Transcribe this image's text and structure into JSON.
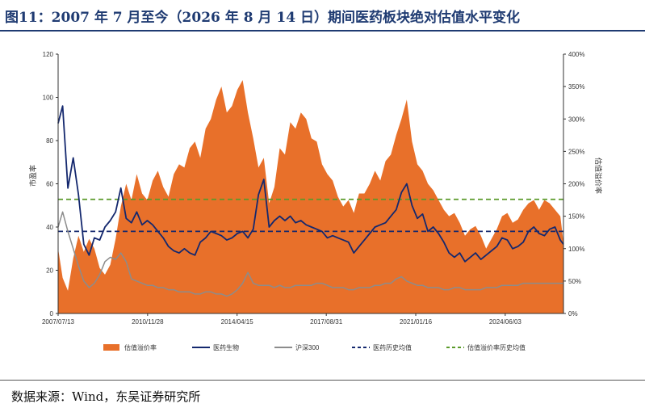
{
  "title": "图11：2007 年 7 月至今（2026 年 8 月 14 日）期间医药板块绝对估值水平变化",
  "source": "数据来源：Wind，东吴证券研究所",
  "colors": {
    "title": "#1f3b72",
    "premium": "#e8702a",
    "pharma": "#14286e",
    "hs300": "#8c8c8c",
    "pharma_mean": "#14286e",
    "premium_mean": "#5a9a2a"
  },
  "chart_data": {
    "type": "area",
    "title": "",
    "y_left": {
      "label": "市盈率",
      "range": [
        0,
        120
      ],
      "ticks": [
        "0",
        "20",
        "40",
        "60",
        "80",
        "100",
        "120"
      ]
    },
    "y_right": {
      "label": "估值溢价率",
      "range": [
        0,
        400
      ],
      "ticks": [
        "0%",
        "50%",
        "100%",
        "150%",
        "200%",
        "250%",
        "300%",
        "350%",
        "400%"
      ]
    },
    "x_ticks": [
      "2007/07/13",
      "2010/11/28",
      "2014/04/15",
      "2017/08/31",
      "2021/01/16",
      "2024/06/03"
    ],
    "x_tick_years": [
      2007.53,
      2010.91,
      2014.29,
      2017.66,
      2021.04,
      2024.42
    ],
    "x_range": [
      2007.53,
      2026.62
    ],
    "legend": [
      "估值溢价率",
      "医药生物",
      "沪深300",
      "医药历史均值",
      "估值溢价率历史均值"
    ],
    "series": [
      {
        "name": "估值溢价率",
        "axis": "right",
        "kind": "area",
        "x": [
          2007.53,
          2007.7,
          2007.9,
          2008.1,
          2008.3,
          2008.5,
          2008.7,
          2008.9,
          2009.1,
          2009.3,
          2009.5,
          2009.7,
          2009.9,
          2010.1,
          2010.3,
          2010.5,
          2010.7,
          2010.9,
          2011.1,
          2011.3,
          2011.5,
          2011.7,
          2011.9,
          2012.1,
          2012.3,
          2012.5,
          2012.7,
          2012.9,
          2013.1,
          2013.3,
          2013.5,
          2013.7,
          2013.9,
          2014.1,
          2014.3,
          2014.5,
          2014.7,
          2014.9,
          2015.1,
          2015.3,
          2015.5,
          2015.7,
          2015.9,
          2016.1,
          2016.3,
          2016.5,
          2016.7,
          2016.9,
          2017.1,
          2017.3,
          2017.5,
          2017.7,
          2017.9,
          2018.1,
          2018.3,
          2018.5,
          2018.7,
          2018.9,
          2019.1,
          2019.3,
          2019.5,
          2019.7,
          2019.9,
          2020.1,
          2020.3,
          2020.5,
          2020.7,
          2020.9,
          2021.1,
          2021.3,
          2021.5,
          2021.7,
          2021.9,
          2022.1,
          2022.3,
          2022.5,
          2022.7,
          2022.9,
          2023.1,
          2023.3,
          2023.5,
          2023.7,
          2023.9,
          2024.1,
          2024.3,
          2024.5,
          2024.7,
          2024.9,
          2025.1,
          2025.3,
          2025.5,
          2025.7,
          2025.9,
          2026.1,
          2026.3,
          2026.5,
          2026.62
        ],
        "y": [
          100,
          55,
          35,
          85,
          120,
          95,
          115,
          100,
          70,
          60,
          75,
          115,
          165,
          200,
          175,
          215,
          185,
          175,
          205,
          220,
          195,
          180,
          215,
          230,
          225,
          255,
          265,
          240,
          285,
          300,
          330,
          350,
          310,
          320,
          345,
          360,
          310,
          270,
          225,
          240,
          170,
          195,
          255,
          245,
          295,
          285,
          310,
          300,
          270,
          265,
          230,
          215,
          205,
          180,
          165,
          175,
          155,
          185,
          185,
          200,
          220,
          205,
          235,
          245,
          275,
          300,
          330,
          265,
          230,
          220,
          200,
          190,
          175,
          160,
          150,
          155,
          140,
          120,
          130,
          135,
          120,
          100,
          115,
          130,
          150,
          155,
          140,
          145,
          160,
          170,
          175,
          160,
          175,
          170,
          160,
          150,
          110
        ]
      },
      {
        "name": "医药生物",
        "axis": "left",
        "kind": "line",
        "x": [
          2007.53,
          2007.7,
          2007.9,
          2008.1,
          2008.3,
          2008.5,
          2008.7,
          2008.9,
          2009.1,
          2009.3,
          2009.5,
          2009.7,
          2009.9,
          2010.1,
          2010.3,
          2010.5,
          2010.7,
          2010.9,
          2011.1,
          2011.3,
          2011.5,
          2011.7,
          2011.9,
          2012.1,
          2012.3,
          2012.5,
          2012.7,
          2012.9,
          2013.1,
          2013.3,
          2013.5,
          2013.7,
          2013.9,
          2014.1,
          2014.3,
          2014.5,
          2014.7,
          2014.9,
          2015.1,
          2015.3,
          2015.5,
          2015.7,
          2015.9,
          2016.1,
          2016.3,
          2016.5,
          2016.7,
          2016.9,
          2017.1,
          2017.3,
          2017.5,
          2017.7,
          2017.9,
          2018.1,
          2018.3,
          2018.5,
          2018.7,
          2018.9,
          2019.1,
          2019.3,
          2019.5,
          2019.7,
          2019.9,
          2020.1,
          2020.3,
          2020.5,
          2020.7,
          2020.9,
          2021.1,
          2021.3,
          2021.5,
          2021.7,
          2021.9,
          2022.1,
          2022.3,
          2022.5,
          2022.7,
          2022.9,
          2023.1,
          2023.3,
          2023.5,
          2023.7,
          2023.9,
          2024.1,
          2024.3,
          2024.5,
          2024.7,
          2024.9,
          2025.1,
          2025.3,
          2025.5,
          2025.7,
          2025.9,
          2026.1,
          2026.3,
          2026.5,
          2026.62
        ],
        "y": [
          88,
          96,
          58,
          72,
          55,
          32,
          27,
          35,
          34,
          40,
          43,
          47,
          58,
          44,
          42,
          47,
          41,
          43,
          41,
          38,
          35,
          31,
          29,
          28,
          30,
          28,
          27,
          33,
          35,
          38,
          37,
          36,
          34,
          35,
          37,
          38,
          35,
          39,
          55,
          62,
          40,
          43,
          45,
          43,
          45,
          42,
          43,
          41,
          40,
          39,
          38,
          35,
          36,
          35,
          34,
          33,
          28,
          31,
          34,
          37,
          40,
          41,
          42,
          45,
          48,
          56,
          60,
          50,
          44,
          46,
          38,
          40,
          37,
          33,
          28,
          26,
          28,
          24,
          26,
          28,
          25,
          27,
          29,
          31,
          35,
          34,
          30,
          31,
          33,
          38,
          40,
          37,
          36,
          39,
          40,
          34,
          32
        ]
      },
      {
        "name": "沪深300",
        "axis": "left",
        "kind": "line",
        "x": [
          2007.53,
          2007.7,
          2007.9,
          2008.1,
          2008.3,
          2008.5,
          2008.7,
          2008.9,
          2009.1,
          2009.3,
          2009.5,
          2009.7,
          2009.9,
          2010.1,
          2010.3,
          2010.5,
          2010.7,
          2010.9,
          2011.1,
          2011.3,
          2011.5,
          2011.7,
          2011.9,
          2012.1,
          2012.3,
          2012.5,
          2012.7,
          2012.9,
          2013.1,
          2013.3,
          2013.5,
          2013.7,
          2013.9,
          2014.1,
          2014.3,
          2014.5,
          2014.7,
          2014.9,
          2015.1,
          2015.3,
          2015.5,
          2015.7,
          2015.9,
          2016.1,
          2016.3,
          2016.5,
          2016.7,
          2016.9,
          2017.1,
          2017.3,
          2017.5,
          2017.7,
          2017.9,
          2018.1,
          2018.3,
          2018.5,
          2018.7,
          2018.9,
          2019.1,
          2019.3,
          2019.5,
          2019.7,
          2019.9,
          2020.1,
          2020.3,
          2020.5,
          2020.7,
          2020.9,
          2021.1,
          2021.3,
          2021.5,
          2021.7,
          2021.9,
          2022.1,
          2022.3,
          2022.5,
          2022.7,
          2022.9,
          2023.1,
          2023.3,
          2023.5,
          2023.7,
          2023.9,
          2024.1,
          2024.3,
          2024.5,
          2024.7,
          2024.9,
          2025.1,
          2025.3,
          2025.5,
          2025.7,
          2025.9,
          2026.1,
          2026.3,
          2026.5,
          2026.62
        ],
        "y": [
          40,
          47,
          38,
          30,
          22,
          15,
          12,
          14,
          18,
          24,
          26,
          25,
          28,
          24,
          16,
          15,
          14,
          13,
          13,
          12,
          12,
          11,
          11,
          10,
          10,
          10,
          9,
          9,
          10,
          10,
          9,
          9,
          8,
          9,
          11,
          14,
          19,
          14,
          13,
          13,
          13,
          12,
          13,
          12,
          12,
          13,
          13,
          13,
          13,
          14,
          14,
          13,
          12,
          12,
          12,
          11,
          11,
          12,
          12,
          12,
          13,
          13,
          14,
          14,
          16,
          17,
          15,
          14,
          13,
          13,
          12,
          12,
          12,
          11,
          11,
          12,
          12,
          11,
          11,
          11,
          11,
          12,
          12,
          12,
          13,
          13,
          13,
          13,
          14,
          14,
          14,
          14,
          14,
          14,
          14,
          14,
          14
        ]
      }
    ],
    "reference_lines": [
      {
        "name": "医药历史均值",
        "axis": "left",
        "value": 38
      },
      {
        "name": "估值溢价率历史均值",
        "axis": "right",
        "value": 176
      }
    ]
  }
}
